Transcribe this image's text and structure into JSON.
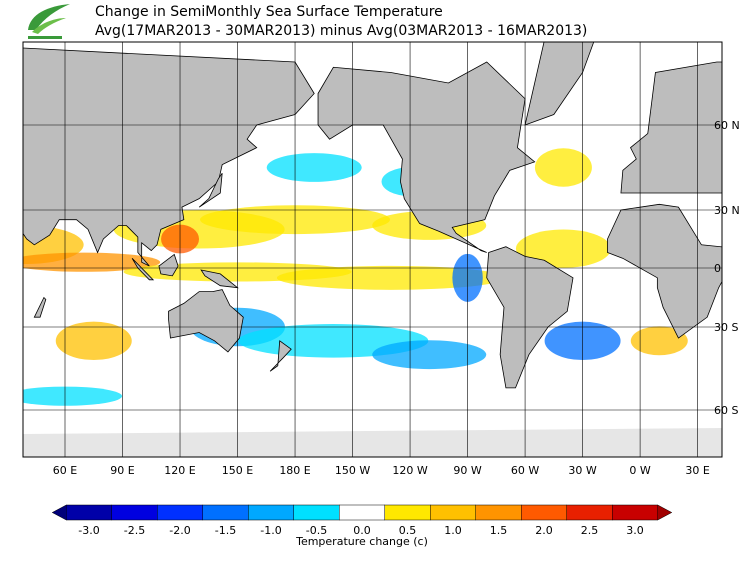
{
  "header": {
    "title": "Change in SemiMonthly Sea Surface Temperature",
    "subtitle": "Avg(17MAR2013 - 30MAR2013) minus Avg(03MAR2013 - 16MAR2013)"
  },
  "map": {
    "lat_labels": [
      "60 N",
      "30 N",
      "0",
      "30 S",
      "60 S"
    ],
    "lon_labels": [
      "60 E",
      "90 E",
      "120 E",
      "150 E",
      "180 E",
      "150 W",
      "120 W",
      "90 W",
      "60 W",
      "30 W",
      "0 W",
      "30 E"
    ]
  },
  "colorbar": {
    "label": "Temperature change  (c)",
    "ticks": [
      {
        "value": -3.0,
        "label": "-3.0"
      },
      {
        "value": -2.5,
        "label": "-2.5"
      },
      {
        "value": -2.0,
        "label": "-2.0"
      },
      {
        "value": -1.5,
        "label": "-1.5"
      },
      {
        "value": -1.0,
        "label": "-1.0"
      },
      {
        "value": -0.5,
        "label": "-0.5"
      },
      {
        "value": 0.0,
        "label": "0.0"
      },
      {
        "value": 0.5,
        "label": "0.5"
      },
      {
        "value": 1.0,
        "label": "1.0"
      },
      {
        "value": 1.5,
        "label": "1.5"
      },
      {
        "value": 2.0,
        "label": "2.0"
      },
      {
        "value": 2.5,
        "label": "2.5"
      },
      {
        "value": 3.0,
        "label": "3.0"
      }
    ],
    "colors": [
      "#0000a8",
      "#0000e0",
      "#0030ff",
      "#0070ff",
      "#00a8ff",
      "#00e0ff",
      "#ffffff",
      "#ffe800",
      "#ffc000",
      "#ff9400",
      "#ff5a00",
      "#e82000",
      "#c80000"
    ],
    "under_color": "#00007a",
    "over_color": "#a00000"
  }
}
